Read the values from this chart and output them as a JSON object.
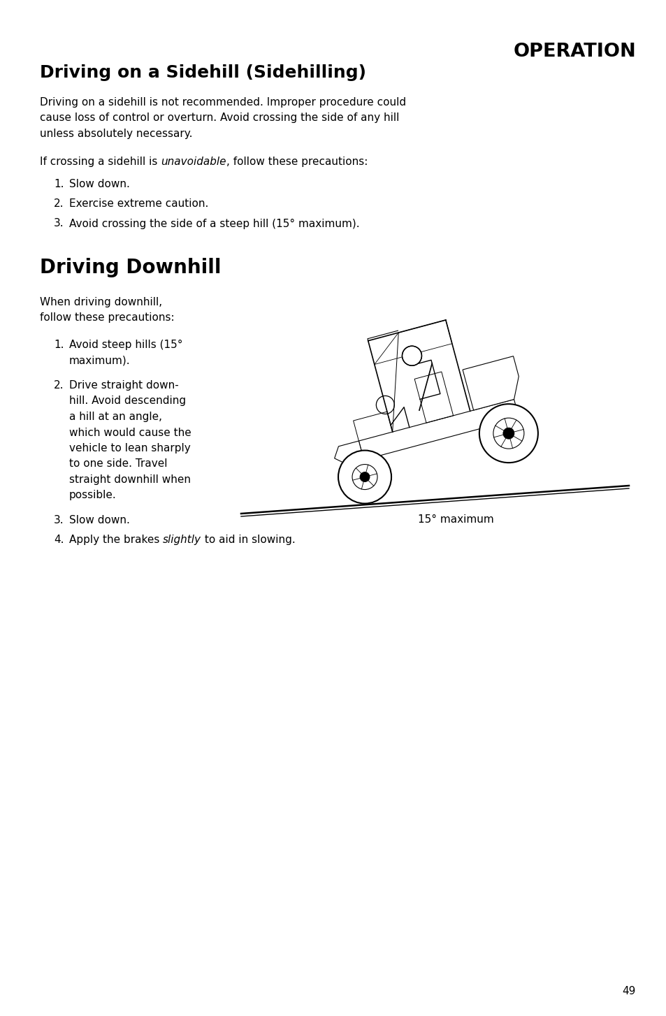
{
  "page_width": 9.54,
  "page_height": 14.54,
  "background_color": "#ffffff",
  "section_header": "OPERATION",
  "title1": "Driving on a Sidehill (Sidehilling)",
  "para1_line1": "Driving on a sidehill is not recommended. Improper procedure could",
  "para1_line2": "cause loss of control or overturn. Avoid crossing the side of any hill",
  "para1_line3": "unless absolutely necessary.",
  "para2_prefix": "If crossing a sidehill is ",
  "para2_italic": "unavoidable",
  "para2_suffix": ", follow these precautions:",
  "list1": [
    "Slow down.",
    "Exercise extreme caution.",
    "Avoid crossing the side of a steep hill (15° maximum)."
  ],
  "title2": "Driving Downhill",
  "para3_line1": "When driving downhill,",
  "para3_line2": "follow these precautions:",
  "list2_item1_line1": "Avoid steep hills (15°",
  "list2_item1_line2": "maximum).",
  "list2_item2_line1": "Drive straight down-",
  "list2_item2_line2": "hill. Avoid descending",
  "list2_item2_line3": "a hill at an angle,",
  "list2_item2_line4": "which would cause the",
  "list2_item2_line5": "vehicle to lean sharply",
  "list2_item2_line6": "to one side. Travel",
  "list2_item2_line7": "straight downhill when",
  "list2_item2_line8": "possible.",
  "list3_item3": "Slow down.",
  "list3_item4_pre": "Apply the brakes ",
  "list3_item4_italic": "slightly",
  "list3_item4_post": " to aid in slowing.",
  "image_label": "15° maximum",
  "page_number": "49",
  "lmargin": 0.57,
  "rmargin": 9.1,
  "body_fs": 11.0,
  "title1_fs": 18.0,
  "title2_fs": 20.0,
  "header_fs": 19.5
}
